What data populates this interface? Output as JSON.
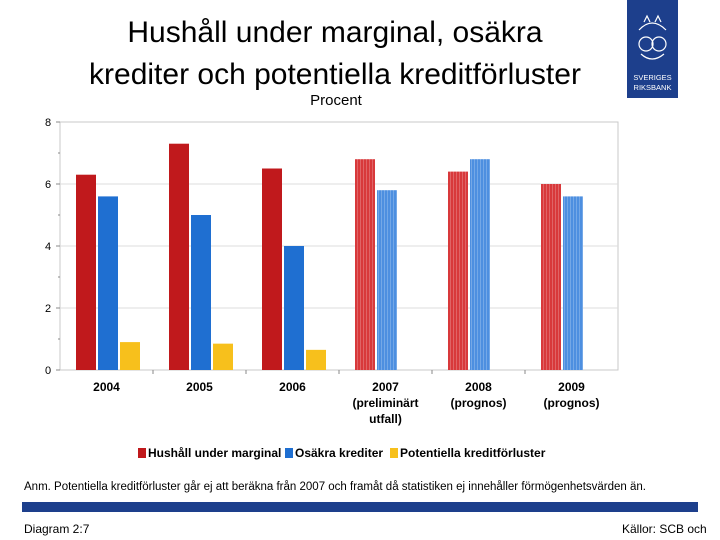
{
  "slide": {
    "title_line1": "Hushåll under marginal, osäkra",
    "title_line2": "krediter och potentiella kreditförluster",
    "note": "Anm. Potentiella kreditförluster går ej att beräkna från 2007 och framåt då statistiken ej innehåller förmögenhetsvärden än.",
    "diagram_label": "Diagram 2:7",
    "source": "Källor: SCB och",
    "logo_text_line1": "SVERIGES",
    "logo_text_line2": "RIKSBANK"
  },
  "colors": {
    "brand_blue": "#1d3f8c",
    "series_red": "#c0191c",
    "series_blue": "#1f6fd1",
    "series_yellow": "#f7c01c",
    "red_forecast": "#d8393b",
    "blue_forecast": "#4d8fe0"
  },
  "chart_data": {
    "type": "bar",
    "title": "Procent",
    "xlabel": "",
    "ylabel": "",
    "ylim": [
      0,
      8
    ],
    "yticks": [
      0,
      2,
      4,
      6,
      8
    ],
    "categories": [
      [
        "2004"
      ],
      [
        "2005"
      ],
      [
        "2006"
      ],
      [
        "2007",
        "(preliminärt",
        "utfall)"
      ],
      [
        "2008",
        "(prognos)"
      ],
      [
        "2009",
        "(prognos)"
      ]
    ],
    "series": [
      {
        "name": "Hushåll under marginal",
        "values": [
          6.3,
          7.3,
          6.5,
          6.8,
          6.4,
          6.0
        ]
      },
      {
        "name": "Osäkra krediter",
        "values": [
          5.6,
          5.0,
          4.0,
          5.8,
          6.8,
          5.6
        ]
      },
      {
        "name": "Potentiella kreditförluster",
        "values": [
          0.9,
          0.85,
          0.65,
          null,
          null,
          null
        ]
      }
    ],
    "forecast_from_index": 3,
    "legend_position": "bottom"
  }
}
